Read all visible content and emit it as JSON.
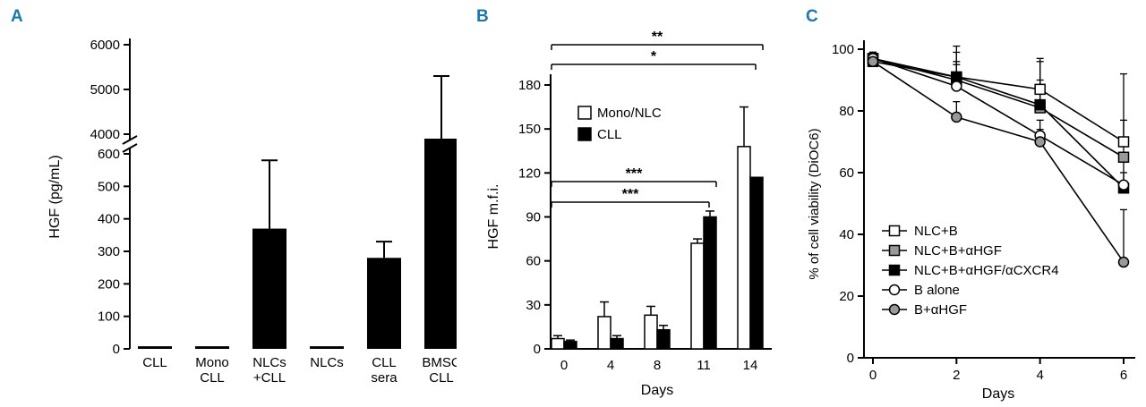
{
  "accent_color": "#1878b4",
  "panels": {
    "a": {
      "label": "A"
    },
    "b": {
      "label": "B"
    },
    "c": {
      "label": "C"
    }
  },
  "chart_data": [
    {
      "type": "bar",
      "panel": "A",
      "ylabel": "HGF (pg/mL)",
      "categories": [
        [
          "CLL"
        ],
        [
          "Mono",
          "CLL"
        ],
        [
          "NLCs",
          "+CLL"
        ],
        [
          "NLCs"
        ],
        [
          "CLL",
          "sera"
        ],
        [
          "BMSC",
          "CLL"
        ]
      ],
      "values": [
        8,
        8,
        370,
        8,
        280,
        3900
      ],
      "errors": [
        0,
        0,
        210,
        0,
        50,
        1400
      ],
      "axis_break": true,
      "y_ticks_lower": [
        0,
        100,
        200,
        300,
        400,
        500,
        600
      ],
      "y_ticks_upper": [
        4000,
        5000,
        6000
      ],
      "bar_color": "#000000"
    },
    {
      "type": "grouped-bar",
      "panel": "B",
      "ylabel": "HGF m.f.i.",
      "xlabel": "Days",
      "categories": [
        "0",
        "4",
        "8",
        "11",
        "14"
      ],
      "y_ticks": [
        0,
        30,
        60,
        90,
        120,
        150,
        180
      ],
      "ylim": [
        0,
        180
      ],
      "series": [
        {
          "name": "Mono/NLC",
          "fill": "#ffffff",
          "values": [
            7,
            22,
            23,
            72,
            138
          ],
          "errors": [
            2,
            10,
            6,
            3,
            27
          ]
        },
        {
          "name": "CLL",
          "fill": "#000000",
          "values": [
            5,
            7,
            13,
            90,
            117
          ],
          "errors": [
            1,
            2,
            3,
            4,
            0
          ]
        }
      ],
      "significance": [
        {
          "label": "**",
          "from": "0",
          "to": "14"
        },
        {
          "label": "*",
          "from": "0",
          "to": "14"
        },
        {
          "label": "***",
          "from": "0",
          "to": "11"
        },
        {
          "label": "***",
          "from": "0",
          "to": "11"
        }
      ]
    },
    {
      "type": "line",
      "panel": "C",
      "ylabel": "% of cell viability (DiOC6)",
      "xlabel": "Days",
      "x": [
        0,
        2,
        4,
        6
      ],
      "x_ticks": [
        0,
        2,
        4,
        6
      ],
      "y_ticks": [
        0,
        20,
        40,
        60,
        80,
        100
      ],
      "ylim": [
        0,
        100
      ],
      "series": [
        {
          "name": "NLC+B",
          "marker": "square",
          "fill": "#ffffff",
          "values": [
            97,
            91,
            87,
            70
          ],
          "errors": [
            2,
            8,
            10,
            22
          ]
        },
        {
          "name": "NLC+B+αHGF",
          "marker": "square",
          "fill": "#999999",
          "values": [
            97,
            90,
            81,
            65
          ],
          "errors": [
            2,
            6,
            9,
            12
          ]
        },
        {
          "name": "NLC+B+αHGF/αCXCR4",
          "marker": "square",
          "fill": "#000000",
          "values": [
            96,
            91,
            82,
            55
          ],
          "errors": [
            2,
            10,
            14,
            5
          ]
        },
        {
          "name": "B alone",
          "marker": "circle",
          "fill": "#ffffff",
          "values": [
            97,
            88,
            72,
            56
          ],
          "errors": [
            2,
            7,
            5,
            8
          ]
        },
        {
          "name": "B+αHGF",
          "marker": "circle",
          "fill": "#999999",
          "values": [
            96,
            78,
            70,
            31
          ],
          "errors": [
            2,
            5,
            4,
            17
          ]
        }
      ]
    }
  ]
}
